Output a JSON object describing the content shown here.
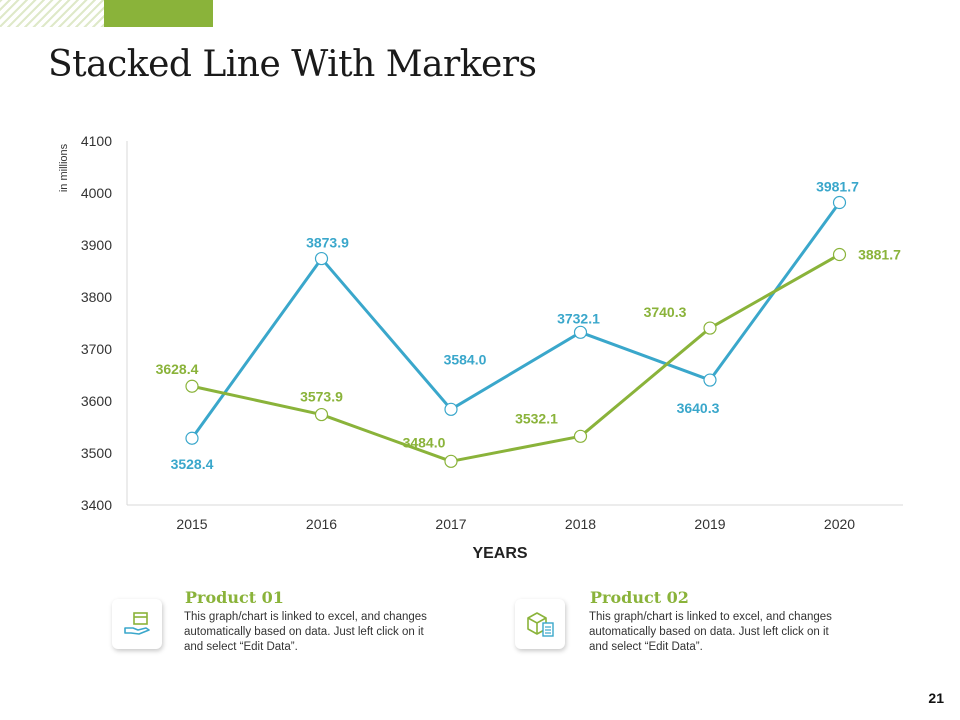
{
  "page": {
    "title": "Stacked Line With Markers",
    "number": "21"
  },
  "colors": {
    "accent_green": "#8ab33a",
    "series_blue": "#3aa7cb",
    "series_green": "#8ab33a"
  },
  "chart_data": {
    "type": "line",
    "title": "",
    "xlabel": "YEARS",
    "ylabel": "in millions",
    "categories": [
      "2015",
      "2016",
      "2017",
      "2018",
      "2019",
      "2020"
    ],
    "ylim": [
      3400,
      4100
    ],
    "yticks": [
      3400,
      3500,
      3600,
      3700,
      3800,
      3900,
      4000,
      4100
    ],
    "grid": false,
    "markers": true,
    "series": [
      {
        "name": "Product 01",
        "color": "#3aa7cb",
        "values": [
          3528.4,
          3873.9,
          3584.0,
          3732.1,
          3640.3,
          3981.7
        ],
        "labels": [
          "3528.4",
          "3873.9",
          "3584.0",
          "3732.1",
          "3640.3",
          "3981.7"
        ]
      },
      {
        "name": "Product 02",
        "color": "#8ab33a",
        "values": [
          3628.4,
          3573.9,
          3484.0,
          3532.1,
          3740.3,
          3881.7
        ],
        "labels": [
          "3628.4",
          "3573.9",
          "3484.0",
          "3532.1",
          "3740.3",
          "3881.7"
        ]
      }
    ]
  },
  "legend": {
    "product1": {
      "title": "Product 01",
      "icon": "hand-box-icon",
      "text": "This graph/chart is linked to excel, and changes automatically based on data. Just left click on it and select “Edit Data”."
    },
    "product2": {
      "title": "Product 02",
      "icon": "package-checklist-icon",
      "text": "This graph/chart is linked to excel, and changes automatically based on data. Just left click on it and select “Edit Data”."
    }
  }
}
